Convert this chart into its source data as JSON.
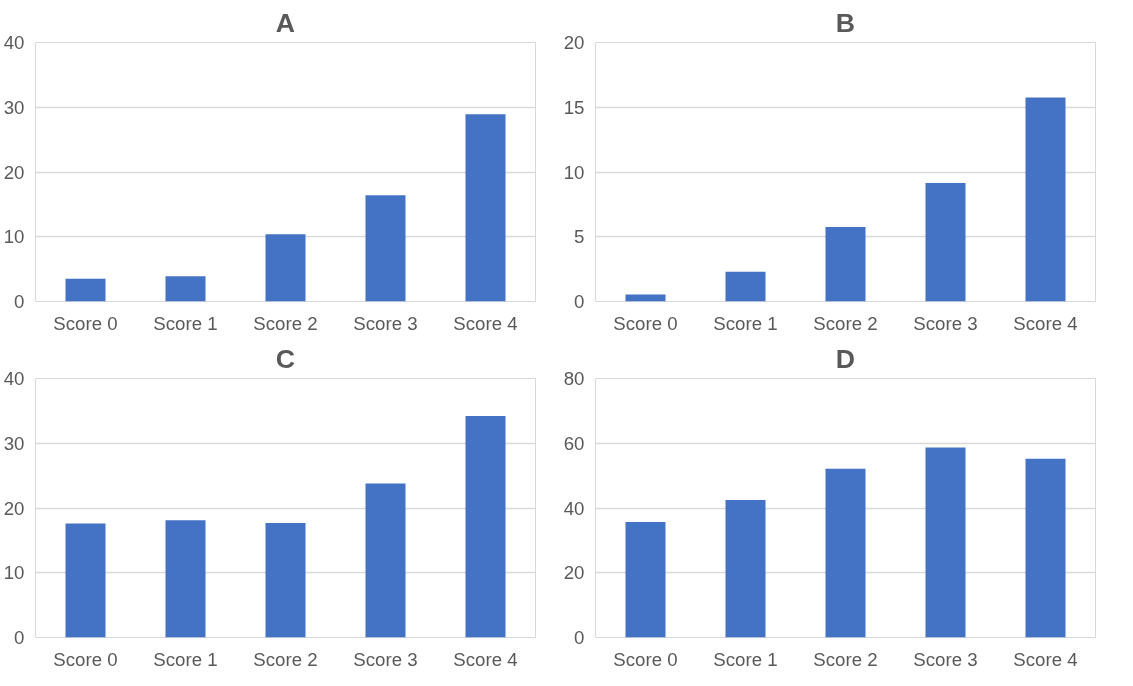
{
  "chart_data": [
    {
      "type": "bar",
      "title": "A",
      "categories": [
        "Score 0",
        "Score 1",
        "Score 2",
        "Score 3",
        "Score 4"
      ],
      "values": [
        3.5,
        3.9,
        10.4,
        16.4,
        28.9
      ],
      "color": "#4472c4",
      "ylim": [
        0,
        40
      ],
      "yticks": [
        0,
        10,
        20,
        30,
        40
      ],
      "grid": "y"
    },
    {
      "type": "bar",
      "title": "B",
      "categories": [
        "Score 0",
        "Score 1",
        "Score 2",
        "Score 3",
        "Score 4"
      ],
      "values": [
        0.54,
        2.3,
        5.76,
        9.16,
        15.76
      ],
      "color": "#4472c4",
      "ylim": [
        0,
        20
      ],
      "yticks": [
        0,
        5,
        10,
        15,
        20
      ],
      "grid": "y"
    },
    {
      "type": "bar",
      "title": "C",
      "categories": [
        "Score 0",
        "Score 1",
        "Score 2",
        "Score 3",
        "Score 4"
      ],
      "values": [
        17.6,
        18.1,
        17.7,
        23.8,
        34.2
      ],
      "color": "#4472c4",
      "ylim": [
        0,
        40
      ],
      "yticks": [
        0,
        10,
        20,
        30,
        40
      ],
      "grid": "y"
    },
    {
      "type": "bar",
      "title": "D",
      "categories": [
        "Score 0",
        "Score 1",
        "Score 2",
        "Score 3",
        "Score 4"
      ],
      "values": [
        35.7,
        42.5,
        52.1,
        58.7,
        55.2
      ],
      "color": "#4472c4",
      "ylim": [
        0,
        80
      ],
      "yticks": [
        0,
        20,
        40,
        60,
        80
      ],
      "grid": "y"
    }
  ]
}
